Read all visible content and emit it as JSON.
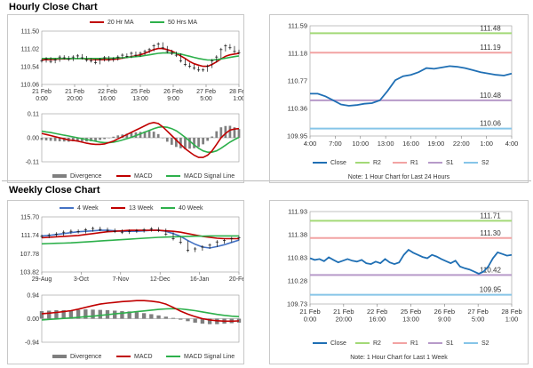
{
  "colors": {
    "close": "#1f6fb4",
    "r2": "#a3d977",
    "r1": "#f2a3a3",
    "s1": "#b79ac9",
    "s2": "#86c5e8",
    "ma_short": "#c00000",
    "ma_long": "#2db04b",
    "ma_4w": "#4472c4",
    "macd": "#c00000",
    "signal": "#2db04b",
    "divergence": "#7f7f7f"
  },
  "hourly": {
    "title": "Hourly Close Chart",
    "price_chart": {
      "type": "line",
      "legend": [
        "20 Hr MA",
        "50 Hrs MA"
      ],
      "y_ticks": [
        "111.50",
        "111.02",
        "110.54",
        "110.06"
      ],
      "x_ticks": [
        "21 Feb\n0:00",
        "21 Feb\n20:00",
        "22 Feb\n16:00",
        "25 Feb\n13:00",
        "26 Feb\n9:00",
        "27 Feb\n5:00",
        "28 Feb\n1:00"
      ],
      "ylim": [
        110.06,
        111.5
      ],
      "candles": [
        110.7,
        110.75,
        110.68,
        110.72,
        110.8,
        110.78,
        110.74,
        110.8,
        110.83,
        110.78,
        110.72,
        110.7,
        110.65,
        110.73,
        110.78,
        110.72,
        110.75,
        110.8,
        110.85,
        110.82,
        110.9,
        110.85,
        110.9,
        110.95,
        111.0,
        111.1,
        111.15,
        111.05,
        110.95,
        110.9,
        110.85,
        110.7,
        110.6,
        110.55,
        110.5,
        110.45,
        110.45,
        110.55,
        110.7,
        110.8,
        111.0,
        111.1,
        111.05,
        110.95,
        110.92
      ],
      "ma20": [
        110.72,
        110.73,
        110.73,
        110.74,
        110.75,
        110.75,
        110.75,
        110.76,
        110.76,
        110.76,
        110.75,
        110.74,
        110.73,
        110.73,
        110.73,
        110.73,
        110.74,
        110.75,
        110.77,
        110.79,
        110.81,
        110.83,
        110.86,
        110.9,
        110.95,
        111.0,
        111.03,
        111.03,
        111.0,
        110.96,
        110.9,
        110.83,
        110.76,
        110.68,
        110.62,
        110.58,
        110.55,
        110.55,
        110.6,
        110.67,
        110.75,
        110.82,
        110.86,
        110.88,
        110.9
      ],
      "ma50": [
        110.76,
        110.76,
        110.76,
        110.76,
        110.76,
        110.76,
        110.76,
        110.76,
        110.76,
        110.76,
        110.76,
        110.76,
        110.76,
        110.76,
        110.77,
        110.77,
        110.77,
        110.78,
        110.78,
        110.79,
        110.8,
        110.81,
        110.82,
        110.84,
        110.86,
        110.88,
        110.9,
        110.91,
        110.91,
        110.91,
        110.9,
        110.88,
        110.85,
        110.82,
        110.79,
        110.76,
        110.74,
        110.72,
        110.72,
        110.73,
        110.75,
        110.77,
        110.79,
        110.81,
        110.83
      ]
    },
    "macd_chart": {
      "y_ticks": [
        "0.11",
        "0.00",
        "-0.11"
      ],
      "ylim": [
        -0.11,
        0.11
      ],
      "legend": [
        "Divergence",
        "MACD",
        "MACD Signal Line"
      ],
      "macd": [
        0.02,
        0.015,
        0.01,
        0.005,
        0.0,
        -0.005,
        -0.01,
        -0.012,
        -0.015,
        -0.02,
        -0.025,
        -0.028,
        -0.03,
        -0.03,
        -0.028,
        -0.022,
        -0.015,
        -0.005,
        0.005,
        0.015,
        0.025,
        0.035,
        0.045,
        0.055,
        0.065,
        0.07,
        0.065,
        0.05,
        0.03,
        0.01,
        -0.01,
        -0.03,
        -0.05,
        -0.065,
        -0.08,
        -0.09,
        -0.09,
        -0.08,
        -0.06,
        -0.03,
        0.0,
        0.02,
        0.035,
        0.04,
        0.042
      ],
      "signal": [
        0.03,
        0.027,
        0.024,
        0.02,
        0.016,
        0.012,
        0.008,
        0.004,
        0.0,
        -0.004,
        -0.008,
        -0.012,
        -0.016,
        -0.02,
        -0.022,
        -0.022,
        -0.02,
        -0.016,
        -0.01,
        -0.004,
        0.002,
        0.01,
        0.018,
        0.026,
        0.034,
        0.042,
        0.048,
        0.05,
        0.048,
        0.042,
        0.032,
        0.018,
        0.002,
        -0.015,
        -0.032,
        -0.048,
        -0.06,
        -0.066,
        -0.066,
        -0.06,
        -0.048,
        -0.034,
        -0.02,
        -0.008,
        0.002
      ],
      "divergence": [
        -0.01,
        -0.012,
        -0.014,
        -0.015,
        -0.016,
        -0.017,
        -0.018,
        -0.016,
        -0.015,
        -0.016,
        -0.017,
        -0.016,
        -0.014,
        -0.01,
        -0.006,
        0.0,
        0.005,
        0.011,
        0.015,
        0.019,
        0.023,
        0.025,
        0.027,
        0.029,
        0.031,
        0.028,
        0.017,
        0.0,
        -0.018,
        -0.032,
        -0.042,
        -0.048,
        -0.052,
        -0.05,
        -0.048,
        -0.042,
        -0.03,
        -0.014,
        0.006,
        0.03,
        0.048,
        0.054,
        0.055,
        0.048,
        0.04
      ]
    },
    "levels_chart": {
      "y_ticks": [
        "111.59",
        "111.18",
        "110.77",
        "110.36",
        "109.95"
      ],
      "ylim": [
        109.95,
        111.59
      ],
      "x_ticks": [
        "4:00",
        "7:00",
        "10:00",
        "13:00",
        "16:00",
        "19:00",
        "22:00",
        "1:00",
        "4:00"
      ],
      "close": [
        110.58,
        110.58,
        110.54,
        110.48,
        110.42,
        110.4,
        110.41,
        110.43,
        110.44,
        110.48,
        110.62,
        110.78,
        110.84,
        110.86,
        110.9,
        110.96,
        110.95,
        110.97,
        110.99,
        110.98,
        110.96,
        110.93,
        110.9,
        110.88,
        110.86,
        110.85,
        110.88
      ],
      "levels": [
        {
          "name": "R2",
          "value": 111.48,
          "label": "111.48"
        },
        {
          "name": "R1",
          "value": 111.19,
          "label": "111.19"
        },
        {
          "name": "S1",
          "value": 110.48,
          "label": "110.48"
        },
        {
          "name": "S2",
          "value": 110.06,
          "label": "110.06"
        }
      ],
      "legend": [
        "Close",
        "R2",
        "R1",
        "S1",
        "S2"
      ],
      "note": "Note: 1 Hour Chart for Last 24 Hours"
    }
  },
  "weekly": {
    "title": "Weekly Close Chart",
    "price_chart": {
      "type": "line",
      "legend": [
        "4 Week",
        "13 Week",
        "40 Week"
      ],
      "y_ticks": [
        "115.70",
        "111.74",
        "107.78",
        "103.82"
      ],
      "x_ticks": [
        "29-Aug",
        "3-Oct",
        "7-Nov",
        "12-Dec",
        "16-Jan",
        "20-Feb"
      ],
      "ylim": [
        103.82,
        115.7
      ],
      "candles": [
        111.5,
        111.8,
        112.0,
        112.4,
        112.6,
        112.5,
        112.9,
        113.2,
        113.0,
        112.8,
        112.6,
        112.4,
        112.6,
        112.7,
        112.9,
        113.1,
        112.8,
        112.0,
        111.0,
        110.2,
        108.5,
        108.8,
        109.2,
        109.6,
        110.3,
        110.6,
        111.0,
        111.2
      ],
      "ma4": [
        111.6,
        111.7,
        111.9,
        112.1,
        112.3,
        112.5,
        112.6,
        112.7,
        112.8,
        112.8,
        112.7,
        112.6,
        112.6,
        112.6,
        112.7,
        112.8,
        112.8,
        112.6,
        112.1,
        111.5,
        110.6,
        109.8,
        109.2,
        109.0,
        109.3,
        109.7,
        110.2,
        110.7
      ],
      "ma13": [
        111.2,
        111.3,
        111.4,
        111.5,
        111.6,
        111.7,
        111.9,
        112.1,
        112.3,
        112.5,
        112.6,
        112.7,
        112.8,
        112.8,
        112.8,
        112.8,
        112.8,
        112.7,
        112.6,
        112.4,
        112.1,
        111.8,
        111.5,
        111.3,
        111.1,
        111.0,
        111.0,
        111.0
      ],
      "ma40": [
        109.9,
        109.95,
        110.0,
        110.05,
        110.1,
        110.2,
        110.3,
        110.4,
        110.5,
        110.6,
        110.7,
        110.8,
        110.9,
        111.0,
        111.1,
        111.2,
        111.3,
        111.35,
        111.4,
        111.45,
        111.5,
        111.55,
        111.55,
        111.6,
        111.6,
        111.6,
        111.6,
        111.6
      ]
    },
    "macd_chart": {
      "y_ticks": [
        "0.94",
        "0.00",
        "-0.94"
      ],
      "ylim": [
        -0.94,
        0.94
      ],
      "legend": [
        "Divergence",
        "MACD",
        "MACD Signal Line"
      ],
      "macd": [
        0.2,
        0.22,
        0.25,
        0.28,
        0.32,
        0.38,
        0.45,
        0.52,
        0.58,
        0.62,
        0.65,
        0.68,
        0.7,
        0.72,
        0.72,
        0.7,
        0.66,
        0.58,
        0.45,
        0.3,
        0.18,
        0.08,
        0.0,
        -0.05,
        -0.08,
        -0.1,
        -0.1,
        -0.09
      ],
      "signal": [
        -0.05,
        -0.03,
        -0.01,
        0.01,
        0.03,
        0.05,
        0.08,
        0.1,
        0.13,
        0.16,
        0.19,
        0.22,
        0.25,
        0.28,
        0.31,
        0.34,
        0.37,
        0.39,
        0.4,
        0.39,
        0.36,
        0.32,
        0.27,
        0.22,
        0.17,
        0.13,
        0.1,
        0.08
      ],
      "divergence": [
        0.3,
        0.32,
        0.34,
        0.34,
        0.33,
        0.35,
        0.37,
        0.36,
        0.35,
        0.34,
        0.32,
        0.3,
        0.29,
        0.26,
        0.22,
        0.18,
        0.13,
        0.08,
        0.03,
        -0.04,
        -0.1,
        -0.16,
        -0.2,
        -0.22,
        -0.22,
        -0.2,
        -0.18,
        -0.16
      ]
    },
    "levels_chart": {
      "y_ticks": [
        "111.93",
        "111.38",
        "110.83",
        "110.28",
        "109.73"
      ],
      "ylim": [
        109.73,
        111.93
      ],
      "x_ticks": [
        "21 Feb\n0:00",
        "21 Feb\n20:00",
        "22 Feb\n16:00",
        "25 Feb\n13:00",
        "26 Feb\n9:00",
        "27 Feb\n5:00",
        "28 Feb\n1:00"
      ],
      "close": [
        110.82,
        110.78,
        110.8,
        110.75,
        110.84,
        110.78,
        110.72,
        110.76,
        110.8,
        110.76,
        110.74,
        110.78,
        110.7,
        110.68,
        110.74,
        110.7,
        110.8,
        110.72,
        110.68,
        110.72,
        110.9,
        111.02,
        110.95,
        110.9,
        110.85,
        110.82,
        110.9,
        110.86,
        110.8,
        110.75,
        110.7,
        110.76,
        110.62,
        110.58,
        110.55,
        110.5,
        110.45,
        110.5,
        110.62,
        110.82,
        110.96,
        110.92,
        110.88,
        110.9
      ],
      "levels": [
        {
          "name": "R2",
          "value": 111.71,
          "label": "111.71"
        },
        {
          "name": "R1",
          "value": 111.3,
          "label": "111.30"
        },
        {
          "name": "S1",
          "value": 110.42,
          "label": "110.42"
        },
        {
          "name": "S2",
          "value": 109.95,
          "label": "109.95"
        }
      ],
      "legend": [
        "Close",
        "R2",
        "R1",
        "S1",
        "S2"
      ],
      "note": "Note: 1 Hour Chart for Last 1 Week"
    }
  }
}
